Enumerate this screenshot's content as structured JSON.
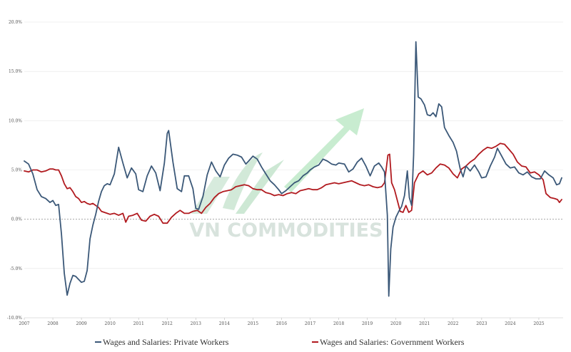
{
  "watermark": {
    "text": "VN COMMODITIES"
  },
  "colors": {
    "private": "#3b5878",
    "government": "#b11a1f",
    "grid": "#e6e6e6",
    "zero": "#9a9a9a"
  },
  "chart_data": {
    "type": "line",
    "title": "",
    "xlabel": "",
    "ylabel": "",
    "xlim": [
      2007,
      2025.85
    ],
    "ylim": [
      -10,
      20
    ],
    "grid": true,
    "legend_position": "bottom",
    "x_ticks": [
      "2007",
      "2008",
      "2009",
      "2010",
      "2011",
      "2012",
      "2013",
      "2014",
      "2015",
      "2016",
      "2017",
      "2018",
      "2019",
      "2020",
      "2021",
      "2022",
      "2023",
      "2024",
      "2025"
    ],
    "y_ticks": [
      {
        "value": 20,
        "label": "20.0%"
      },
      {
        "value": 15,
        "label": "15.0%"
      },
      {
        "value": 10,
        "label": "10.0%"
      },
      {
        "value": 5,
        "label": "5.0%"
      },
      {
        "value": 0,
        "label": "0.0%"
      },
      {
        "value": -5,
        "label": "-5.0%"
      },
      {
        "value": -10,
        "label": "-10.0%"
      }
    ],
    "series": [
      {
        "name": "Wages and Salaries: Private Workers",
        "points": [
          [
            2007.0,
            5.9
          ],
          [
            2007.15,
            5.6
          ],
          [
            2007.3,
            4.6
          ],
          [
            2007.45,
            3.0
          ],
          [
            2007.6,
            2.3
          ],
          [
            2007.75,
            2.1
          ],
          [
            2007.9,
            1.7
          ],
          [
            2008.0,
            1.9
          ],
          [
            2008.1,
            1.4
          ],
          [
            2008.2,
            1.5
          ],
          [
            2008.3,
            -1.5
          ],
          [
            2008.4,
            -5.5
          ],
          [
            2008.5,
            -7.7
          ],
          [
            2008.6,
            -6.5
          ],
          [
            2008.7,
            -5.7
          ],
          [
            2008.8,
            -5.8
          ],
          [
            2008.9,
            -6.1
          ],
          [
            2009.0,
            -6.4
          ],
          [
            2009.1,
            -6.3
          ],
          [
            2009.2,
            -5.2
          ],
          [
            2009.3,
            -2.0
          ],
          [
            2009.4,
            -0.6
          ],
          [
            2009.5,
            0.5
          ],
          [
            2009.6,
            1.8
          ],
          [
            2009.7,
            2.8
          ],
          [
            2009.8,
            3.4
          ],
          [
            2009.9,
            3.6
          ],
          [
            2010.0,
            3.5
          ],
          [
            2010.15,
            4.6
          ],
          [
            2010.3,
            7.3
          ],
          [
            2010.45,
            5.7
          ],
          [
            2010.6,
            4.2
          ],
          [
            2010.75,
            5.2
          ],
          [
            2010.9,
            4.6
          ],
          [
            2011.0,
            3.0
          ],
          [
            2011.15,
            2.8
          ],
          [
            2011.3,
            4.4
          ],
          [
            2011.45,
            5.4
          ],
          [
            2011.6,
            4.7
          ],
          [
            2011.75,
            2.9
          ],
          [
            2011.9,
            5.7
          ],
          [
            2012.0,
            8.7
          ],
          [
            2012.05,
            9.0
          ],
          [
            2012.2,
            5.8
          ],
          [
            2012.35,
            3.1
          ],
          [
            2012.5,
            2.8
          ],
          [
            2012.6,
            4.4
          ],
          [
            2012.75,
            4.4
          ],
          [
            2012.9,
            3.1
          ],
          [
            2013.0,
            1.1
          ],
          [
            2013.1,
            1.0
          ],
          [
            2013.25,
            2.3
          ],
          [
            2013.4,
            4.5
          ],
          [
            2013.55,
            5.8
          ],
          [
            2013.7,
            4.9
          ],
          [
            2013.85,
            4.3
          ],
          [
            2014.0,
            5.5
          ],
          [
            2014.15,
            6.2
          ],
          [
            2014.3,
            6.6
          ],
          [
            2014.45,
            6.5
          ],
          [
            2014.6,
            6.3
          ],
          [
            2014.75,
            5.6
          ],
          [
            2014.85,
            5.9
          ],
          [
            2015.0,
            6.4
          ],
          [
            2015.15,
            6.1
          ],
          [
            2015.3,
            5.3
          ],
          [
            2015.45,
            4.6
          ],
          [
            2015.6,
            3.9
          ],
          [
            2015.75,
            3.5
          ],
          [
            2015.9,
            3.0
          ],
          [
            2016.0,
            2.6
          ],
          [
            2016.15,
            2.9
          ],
          [
            2016.3,
            3.3
          ],
          [
            2016.45,
            3.7
          ],
          [
            2016.6,
            3.9
          ],
          [
            2016.75,
            4.4
          ],
          [
            2016.9,
            4.7
          ],
          [
            2017.0,
            5.0
          ],
          [
            2017.15,
            5.3
          ],
          [
            2017.3,
            5.5
          ],
          [
            2017.45,
            6.1
          ],
          [
            2017.6,
            5.9
          ],
          [
            2017.75,
            5.6
          ],
          [
            2017.9,
            5.5
          ],
          [
            2018.0,
            5.7
          ],
          [
            2018.2,
            5.6
          ],
          [
            2018.35,
            4.8
          ],
          [
            2018.5,
            5.1
          ],
          [
            2018.65,
            5.8
          ],
          [
            2018.8,
            6.2
          ],
          [
            2018.95,
            5.4
          ],
          [
            2019.1,
            4.4
          ],
          [
            2019.25,
            5.4
          ],
          [
            2019.4,
            5.7
          ],
          [
            2019.5,
            5.3
          ],
          [
            2019.6,
            4.8
          ],
          [
            2019.7,
            0.4
          ],
          [
            2019.75,
            -7.8
          ],
          [
            2019.82,
            -3.0
          ],
          [
            2019.9,
            -0.8
          ],
          [
            2020.0,
            0.2
          ],
          [
            2020.1,
            0.8
          ],
          [
            2020.2,
            1.3
          ],
          [
            2020.3,
            2.4
          ],
          [
            2020.4,
            4.9
          ],
          [
            2020.47,
            2.2
          ],
          [
            2020.55,
            1.4
          ],
          [
            2020.62,
            6.5
          ],
          [
            2020.7,
            18.0
          ],
          [
            2020.78,
            12.4
          ],
          [
            2020.88,
            12.2
          ],
          [
            2021.0,
            11.6
          ],
          [
            2021.1,
            10.6
          ],
          [
            2021.2,
            10.5
          ],
          [
            2021.3,
            10.8
          ],
          [
            2021.4,
            10.4
          ],
          [
            2021.5,
            11.7
          ],
          [
            2021.6,
            11.4
          ],
          [
            2021.7,
            9.3
          ],
          [
            2021.85,
            8.5
          ],
          [
            2022.0,
            7.8
          ],
          [
            2022.12,
            6.9
          ],
          [
            2022.25,
            5.1
          ],
          [
            2022.35,
            4.3
          ],
          [
            2022.45,
            5.4
          ],
          [
            2022.6,
            4.9
          ],
          [
            2022.75,
            5.5
          ],
          [
            2022.9,
            4.8
          ],
          [
            2023.0,
            4.2
          ],
          [
            2023.15,
            4.3
          ],
          [
            2023.3,
            5.4
          ],
          [
            2023.45,
            6.3
          ],
          [
            2023.55,
            7.2
          ],
          [
            2023.7,
            6.4
          ],
          [
            2023.85,
            5.6
          ],
          [
            2024.0,
            5.2
          ],
          [
            2024.15,
            5.3
          ],
          [
            2024.3,
            4.7
          ],
          [
            2024.45,
            4.5
          ],
          [
            2024.6,
            4.8
          ],
          [
            2024.75,
            4.3
          ],
          [
            2024.9,
            4.1
          ],
          [
            2025.05,
            4.1
          ],
          [
            2025.2,
            4.9
          ],
          [
            2025.35,
            4.5
          ],
          [
            2025.5,
            4.2
          ],
          [
            2025.62,
            3.5
          ],
          [
            2025.72,
            3.6
          ],
          [
            2025.8,
            4.2
          ]
        ]
      },
      {
        "name": "Wages and Salaries: Government Workers",
        "points": [
          [
            2007.0,
            4.9
          ],
          [
            2007.15,
            4.8
          ],
          [
            2007.3,
            5.0
          ],
          [
            2007.45,
            5.0
          ],
          [
            2007.6,
            4.8
          ],
          [
            2007.75,
            4.9
          ],
          [
            2007.9,
            5.1
          ],
          [
            2008.0,
            5.1
          ],
          [
            2008.1,
            5.0
          ],
          [
            2008.2,
            5.0
          ],
          [
            2008.3,
            4.4
          ],
          [
            2008.4,
            3.6
          ],
          [
            2008.5,
            3.1
          ],
          [
            2008.6,
            3.2
          ],
          [
            2008.7,
            2.8
          ],
          [
            2008.8,
            2.3
          ],
          [
            2008.9,
            2.1
          ],
          [
            2009.0,
            1.7
          ],
          [
            2009.1,
            1.8
          ],
          [
            2009.2,
            1.6
          ],
          [
            2009.3,
            1.5
          ],
          [
            2009.4,
            1.6
          ],
          [
            2009.5,
            1.4
          ],
          [
            2009.6,
            1.2
          ],
          [
            2009.7,
            0.8
          ],
          [
            2009.8,
            0.7
          ],
          [
            2009.9,
            0.6
          ],
          [
            2010.0,
            0.5
          ],
          [
            2010.15,
            0.6
          ],
          [
            2010.3,
            0.4
          ],
          [
            2010.45,
            0.6
          ],
          [
            2010.55,
            -0.3
          ],
          [
            2010.65,
            0.3
          ],
          [
            2010.8,
            0.4
          ],
          [
            2010.95,
            0.6
          ],
          [
            2011.1,
            -0.1
          ],
          [
            2011.25,
            -0.2
          ],
          [
            2011.4,
            0.3
          ],
          [
            2011.55,
            0.5
          ],
          [
            2011.7,
            0.3
          ],
          [
            2011.85,
            -0.4
          ],
          [
            2012.0,
            -0.4
          ],
          [
            2012.15,
            0.2
          ],
          [
            2012.3,
            0.6
          ],
          [
            2012.45,
            0.9
          ],
          [
            2012.6,
            0.6
          ],
          [
            2012.75,
            0.6
          ],
          [
            2012.9,
            0.8
          ],
          [
            2013.05,
            0.9
          ],
          [
            2013.2,
            0.6
          ],
          [
            2013.35,
            1.2
          ],
          [
            2013.5,
            1.6
          ],
          [
            2013.65,
            2.2
          ],
          [
            2013.8,
            2.6
          ],
          [
            2013.95,
            2.8
          ],
          [
            2014.1,
            2.9
          ],
          [
            2014.25,
            3.0
          ],
          [
            2014.4,
            3.3
          ],
          [
            2014.55,
            3.4
          ],
          [
            2014.7,
            3.5
          ],
          [
            2014.85,
            3.4
          ],
          [
            2015.0,
            3.1
          ],
          [
            2015.15,
            3.0
          ],
          [
            2015.3,
            3.0
          ],
          [
            2015.45,
            2.7
          ],
          [
            2015.6,
            2.6
          ],
          [
            2015.75,
            2.4
          ],
          [
            2015.9,
            2.5
          ],
          [
            2016.05,
            2.4
          ],
          [
            2016.2,
            2.6
          ],
          [
            2016.35,
            2.7
          ],
          [
            2016.5,
            2.6
          ],
          [
            2016.65,
            2.9
          ],
          [
            2016.8,
            3.0
          ],
          [
            2016.95,
            3.1
          ],
          [
            2017.1,
            3.0
          ],
          [
            2017.25,
            3.0
          ],
          [
            2017.4,
            3.2
          ],
          [
            2017.55,
            3.5
          ],
          [
            2017.7,
            3.6
          ],
          [
            2017.85,
            3.7
          ],
          [
            2018.0,
            3.6
          ],
          [
            2018.15,
            3.7
          ],
          [
            2018.3,
            3.8
          ],
          [
            2018.45,
            3.9
          ],
          [
            2018.6,
            3.7
          ],
          [
            2018.75,
            3.5
          ],
          [
            2018.9,
            3.4
          ],
          [
            2019.05,
            3.5
          ],
          [
            2019.2,
            3.3
          ],
          [
            2019.35,
            3.2
          ],
          [
            2019.5,
            3.3
          ],
          [
            2019.6,
            3.7
          ],
          [
            2019.72,
            6.5
          ],
          [
            2019.78,
            6.6
          ],
          [
            2019.85,
            3.7
          ],
          [
            2019.95,
            3.0
          ],
          [
            2020.05,
            1.9
          ],
          [
            2020.15,
            0.8
          ],
          [
            2020.25,
            0.7
          ],
          [
            2020.35,
            1.4
          ],
          [
            2020.45,
            0.7
          ],
          [
            2020.55,
            0.9
          ],
          [
            2020.65,
            3.7
          ],
          [
            2020.8,
            4.6
          ],
          [
            2020.95,
            4.9
          ],
          [
            2021.1,
            4.5
          ],
          [
            2021.25,
            4.7
          ],
          [
            2021.4,
            5.2
          ],
          [
            2021.55,
            5.6
          ],
          [
            2021.7,
            5.5
          ],
          [
            2021.85,
            5.2
          ],
          [
            2022.0,
            4.6
          ],
          [
            2022.15,
            4.2
          ],
          [
            2022.3,
            5.1
          ],
          [
            2022.45,
            5.4
          ],
          [
            2022.6,
            5.8
          ],
          [
            2022.75,
            6.1
          ],
          [
            2022.9,
            6.6
          ],
          [
            2023.05,
            7.0
          ],
          [
            2023.2,
            7.3
          ],
          [
            2023.35,
            7.2
          ],
          [
            2023.5,
            7.4
          ],
          [
            2023.65,
            7.7
          ],
          [
            2023.8,
            7.6
          ],
          [
            2023.95,
            7.1
          ],
          [
            2024.1,
            6.6
          ],
          [
            2024.25,
            5.8
          ],
          [
            2024.4,
            5.4
          ],
          [
            2024.55,
            5.3
          ],
          [
            2024.7,
            4.7
          ],
          [
            2024.85,
            4.8
          ],
          [
            2025.0,
            4.5
          ],
          [
            2025.15,
            4.0
          ],
          [
            2025.25,
            2.6
          ],
          [
            2025.4,
            2.2
          ],
          [
            2025.55,
            2.1
          ],
          [
            2025.65,
            2.0
          ],
          [
            2025.72,
            1.7
          ],
          [
            2025.8,
            2.0
          ]
        ]
      }
    ]
  }
}
